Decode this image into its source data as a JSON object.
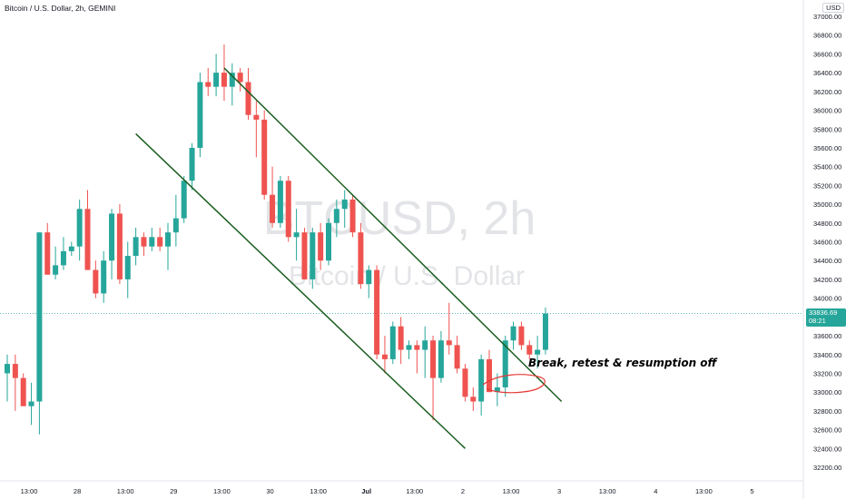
{
  "header": {
    "title": "Bitcoin / U.S. Dollar, 2h, GEMINI",
    "currency": "USD"
  },
  "watermark": {
    "symbol": "BTCUSD, 2h",
    "name": "Bitcoin / U.S. Dollar"
  },
  "last_price": {
    "value": "33836.69",
    "countdown": "08:21"
  },
  "annotation": {
    "text": "Break, retest & resumption off"
  },
  "colors": {
    "up": "#26a69a",
    "down": "#ef5350",
    "channel": "#1b5e20",
    "annotation_circle": "#e53935",
    "price_line": "#26a69a",
    "watermark": "#e3e4e7",
    "axis_text": "#131722"
  },
  "chart_data": {
    "type": "candlestick",
    "title": "Bitcoin / U.S. Dollar, 2h, GEMINI",
    "ylim": [
      32100,
      37050
    ],
    "price_ticks": [
      37000,
      36800,
      36600,
      36400,
      36200,
      36000,
      35800,
      35600,
      35400,
      35200,
      35000,
      34800,
      34600,
      34400,
      34200,
      34000,
      33800,
      33600,
      33400,
      33200,
      33000,
      32800,
      32600,
      32400,
      32200
    ],
    "time_labels": [
      "13:00",
      "28",
      "13:00",
      "29",
      "13:00",
      "30",
      "13:00",
      "Jul",
      "13:00",
      "2",
      "13:00",
      "3",
      "13:00",
      "4",
      "13:00",
      "5"
    ],
    "time_label_slots": [
      0,
      6,
      12,
      18,
      24,
      30,
      36,
      42,
      48,
      54,
      60,
      66,
      72,
      78,
      84,
      90
    ],
    "bold_time_label": "Jul",
    "candles": [
      {
        "o": 33200,
        "h": 33400,
        "l": 32900,
        "c": 33300
      },
      {
        "o": 33300,
        "h": 33400,
        "l": 32800,
        "c": 33150
      },
      {
        "o": 33150,
        "h": 33200,
        "l": 32850,
        "c": 32850
      },
      {
        "o": 32850,
        "h": 33100,
        "l": 32650,
        "c": 32900
      },
      {
        "o": 32900,
        "h": 34700,
        "l": 32550,
        "c": 34700
      },
      {
        "o": 34700,
        "h": 34800,
        "l": 34250,
        "c": 34250
      },
      {
        "o": 34250,
        "h": 34550,
        "l": 34200,
        "c": 34350
      },
      {
        "o": 34350,
        "h": 34650,
        "l": 34300,
        "c": 34500
      },
      {
        "o": 34500,
        "h": 34600,
        "l": 34450,
        "c": 34550
      },
      {
        "o": 34550,
        "h": 35050,
        "l": 34400,
        "c": 34950
      },
      {
        "o": 34950,
        "h": 35150,
        "l": 34300,
        "c": 34300
      },
      {
        "o": 34300,
        "h": 34400,
        "l": 34000,
        "c": 34050
      },
      {
        "o": 34050,
        "h": 34500,
        "l": 33950,
        "c": 34400
      },
      {
        "o": 34400,
        "h": 34950,
        "l": 34200,
        "c": 34900
      },
      {
        "o": 34900,
        "h": 35000,
        "l": 34150,
        "c": 34200
      },
      {
        "o": 34200,
        "h": 34600,
        "l": 34000,
        "c": 34450
      },
      {
        "o": 34450,
        "h": 34750,
        "l": 34350,
        "c": 34650
      },
      {
        "o": 34650,
        "h": 34700,
        "l": 34450,
        "c": 34550
      },
      {
        "o": 34550,
        "h": 34750,
        "l": 34500,
        "c": 34650
      },
      {
        "o": 34650,
        "h": 34750,
        "l": 34500,
        "c": 34550
      },
      {
        "o": 34550,
        "h": 34800,
        "l": 34300,
        "c": 34700
      },
      {
        "o": 34700,
        "h": 35100,
        "l": 34550,
        "c": 34850
      },
      {
        "o": 34850,
        "h": 35300,
        "l": 34800,
        "c": 35250
      },
      {
        "o": 35250,
        "h": 35650,
        "l": 35150,
        "c": 35600
      },
      {
        "o": 35600,
        "h": 36400,
        "l": 35500,
        "c": 36300
      },
      {
        "o": 36300,
        "h": 36450,
        "l": 36150,
        "c": 36250
      },
      {
        "o": 36250,
        "h": 36600,
        "l": 36150,
        "c": 36400
      },
      {
        "o": 36400,
        "h": 36700,
        "l": 36100,
        "c": 36250
      },
      {
        "o": 36250,
        "h": 36500,
        "l": 36050,
        "c": 36400
      },
      {
        "o": 36400,
        "h": 36450,
        "l": 36200,
        "c": 36300
      },
      {
        "o": 36300,
        "h": 36450,
        "l": 35900,
        "c": 35950
      },
      {
        "o": 35950,
        "h": 36100,
        "l": 35500,
        "c": 35900
      },
      {
        "o": 35900,
        "h": 36000,
        "l": 35050,
        "c": 35100
      },
      {
        "o": 35100,
        "h": 35400,
        "l": 34750,
        "c": 34800
      },
      {
        "o": 34800,
        "h": 35300,
        "l": 34750,
        "c": 35250
      },
      {
        "o": 35250,
        "h": 35300,
        "l": 34600,
        "c": 34650
      },
      {
        "o": 34650,
        "h": 34950,
        "l": 34400,
        "c": 34700
      },
      {
        "o": 34700,
        "h": 34750,
        "l": 34200,
        "c": 34200
      },
      {
        "o": 34200,
        "h": 34750,
        "l": 34100,
        "c": 34700
      },
      {
        "o": 34700,
        "h": 34800,
        "l": 34300,
        "c": 34400
      },
      {
        "o": 34400,
        "h": 34850,
        "l": 34350,
        "c": 34800
      },
      {
        "o": 34800,
        "h": 35050,
        "l": 34650,
        "c": 34950
      },
      {
        "o": 34950,
        "h": 35150,
        "l": 34750,
        "c": 35050
      },
      {
        "o": 35050,
        "h": 35100,
        "l": 34650,
        "c": 34700
      },
      {
        "o": 34700,
        "h": 34800,
        "l": 34100,
        "c": 34150
      },
      {
        "o": 34150,
        "h": 34350,
        "l": 34000,
        "c": 34300
      },
      {
        "o": 34300,
        "h": 34350,
        "l": 33350,
        "c": 33400
      },
      {
        "o": 33400,
        "h": 33600,
        "l": 33200,
        "c": 33350
      },
      {
        "o": 33350,
        "h": 33750,
        "l": 33300,
        "c": 33700
      },
      {
        "o": 33700,
        "h": 33800,
        "l": 33300,
        "c": 33450
      },
      {
        "o": 33450,
        "h": 33550,
        "l": 33350,
        "c": 33500
      },
      {
        "o": 33500,
        "h": 33550,
        "l": 33200,
        "c": 33450
      },
      {
        "o": 33450,
        "h": 33700,
        "l": 33150,
        "c": 33550
      },
      {
        "o": 33550,
        "h": 33600,
        "l": 32700,
        "c": 33150
      },
      {
        "o": 33150,
        "h": 33650,
        "l": 33100,
        "c": 33550
      },
      {
        "o": 33550,
        "h": 33950,
        "l": 33400,
        "c": 33500
      },
      {
        "o": 33500,
        "h": 33600,
        "l": 33200,
        "c": 33250
      },
      {
        "o": 33250,
        "h": 33300,
        "l": 32900,
        "c": 32950
      },
      {
        "o": 32950,
        "h": 33050,
        "l": 32800,
        "c": 32900
      },
      {
        "o": 32900,
        "h": 33400,
        "l": 32750,
        "c": 33350
      },
      {
        "o": 33350,
        "h": 33450,
        "l": 33000,
        "c": 33000
      },
      {
        "o": 33000,
        "h": 33200,
        "l": 32850,
        "c": 33050
      },
      {
        "o": 33050,
        "h": 33600,
        "l": 32950,
        "c": 33550
      },
      {
        "o": 33550,
        "h": 33750,
        "l": 33450,
        "c": 33700
      },
      {
        "o": 33700,
        "h": 33750,
        "l": 33450,
        "c": 33500
      },
      {
        "o": 33500,
        "h": 33550,
        "l": 33350,
        "c": 33400
      },
      {
        "o": 33400,
        "h": 33600,
        "l": 33250,
        "c": 33450
      },
      {
        "o": 33450,
        "h": 33900,
        "l": 33400,
        "c": 33836.69
      }
    ],
    "drawings": {
      "upper_channel_line": [
        {
          "slot": 27,
          "price": 36450
        },
        {
          "slot": 69,
          "price": 32900
        }
      ],
      "lower_channel_line": [
        {
          "slot": 16,
          "price": 35750
        },
        {
          "slot": 57,
          "price": 32400
        }
      ]
    }
  }
}
